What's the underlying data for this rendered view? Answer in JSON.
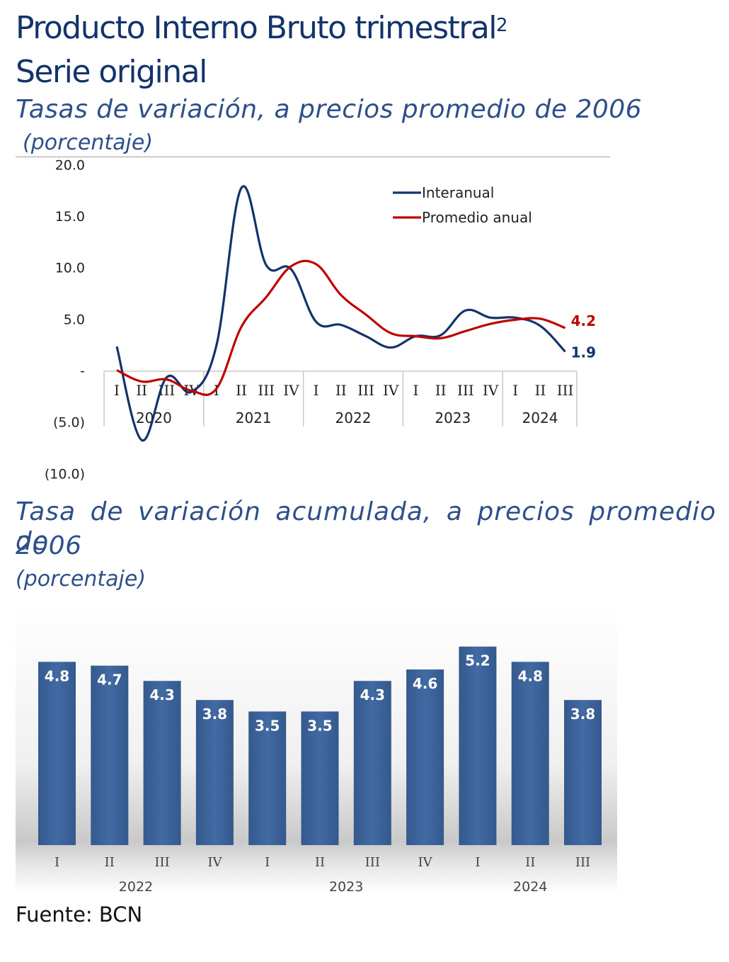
{
  "header": {
    "title_line1": "Producto Interno Bruto trimestral",
    "title_sup": "2",
    "title_line2": "Serie original"
  },
  "chart1": {
    "subtitle": "Tasas de variación, a precios promedio de 2006",
    "unit": "(porcentaje)"
  },
  "chart2": {
    "subtitle_line1": "Tasa de variación acumulada, a precios promedio de",
    "subtitle_line2": "2006",
    "unit": "(porcentaje)"
  },
  "source": "Fuente: BCN",
  "chart_data": [
    {
      "type": "line",
      "title": "Tasas de variación, a precios promedio de 2006",
      "ylabel": "(porcentaje)",
      "ylim": [
        -10,
        20
      ],
      "yticks": [
        20,
        15,
        10,
        5,
        0,
        -5,
        -10
      ],
      "ytick_labels": [
        "20.0",
        "15.0",
        "10.0",
        "5.0",
        "-",
        "(5.0)",
        "(10.0)"
      ],
      "categories": [
        "I",
        "II",
        "III",
        "IV",
        "I",
        "II",
        "III",
        "IV",
        "I",
        "II",
        "III",
        "IV",
        "I",
        "II",
        "III",
        "IV",
        "I",
        "II",
        "III"
      ],
      "years": [
        {
          "label": "2020",
          "quarters": 4
        },
        {
          "label": "2021",
          "quarters": 4
        },
        {
          "label": "2022",
          "quarters": 4
        },
        {
          "label": "2023",
          "quarters": 4
        },
        {
          "label": "2024",
          "quarters": 3
        }
      ],
      "legend_position": "top-right",
      "series": [
        {
          "name": "Interanual",
          "color": "#14336b",
          "values": [
            2.4,
            -6.7,
            -0.6,
            -2.0,
            2.5,
            17.8,
            10.3,
            9.9,
            4.8,
            4.5,
            3.4,
            2.3,
            3.4,
            3.5,
            5.9,
            5.2,
            5.2,
            4.4,
            1.9
          ],
          "end_label": "1.9"
        },
        {
          "name": "Promedio anual",
          "color": "#c00000",
          "values": [
            0.1,
            -1.0,
            -0.8,
            -1.9,
            -1.7,
            4.3,
            7.2,
            10.2,
            10.4,
            7.4,
            5.5,
            3.7,
            3.4,
            3.2,
            3.9,
            4.6,
            5.0,
            5.1,
            4.2
          ],
          "end_label": "4.2"
        }
      ]
    },
    {
      "type": "bar",
      "title": "Tasa de variación acumulada, a precios promedio de 2006",
      "ylabel": "(porcentaje)",
      "ylim": [
        0,
        5.2
      ],
      "categories": [
        "I",
        "II",
        "III",
        "IV",
        "I",
        "II",
        "III",
        "IV",
        "I",
        "II",
        "III"
      ],
      "years": [
        {
          "label": "2022",
          "quarters": 4
        },
        {
          "label": "2023",
          "quarters": 4
        },
        {
          "label": "2024",
          "quarters": 3
        }
      ],
      "values": [
        4.8,
        4.7,
        4.3,
        3.8,
        3.5,
        3.5,
        4.3,
        4.6,
        5.2,
        4.8,
        3.8
      ],
      "labels": [
        "4.8",
        "4.7",
        "4.3",
        "3.8",
        "3.5",
        "3.5",
        "4.3",
        "4.6",
        "5.2",
        "4.8",
        "3.8"
      ],
      "color": "#3a6096"
    }
  ]
}
